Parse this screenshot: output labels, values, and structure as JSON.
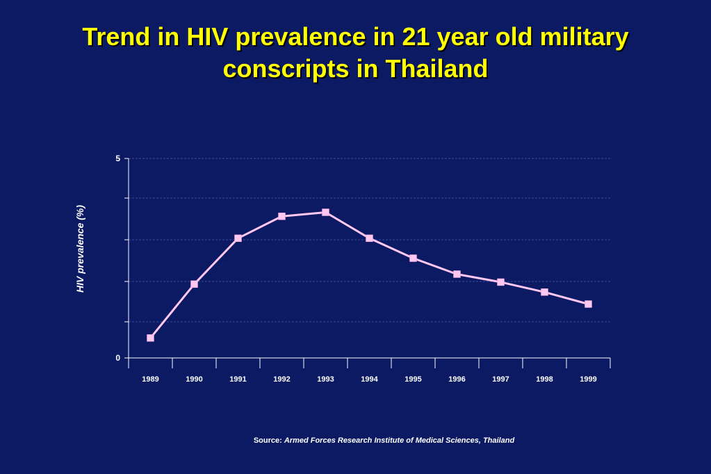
{
  "title": {
    "line1": "Trend in HIV prevalence in 21 year old military",
    "line2": "conscripts in Thailand"
  },
  "chart_data": {
    "type": "line",
    "categories": [
      "1989",
      "1990",
      "1991",
      "1992",
      "1993",
      "1994",
      "1995",
      "1996",
      "1997",
      "1998",
      "1999"
    ],
    "values": [
      0.5,
      1.85,
      3.0,
      3.55,
      3.65,
      3.0,
      2.5,
      2.1,
      1.9,
      1.65,
      1.35
    ],
    "ylabel": "HIV prevalence (%)",
    "yticks": [
      "0",
      "5"
    ],
    "ylim": [
      0,
      5
    ],
    "grid": true,
    "line_color": "#ffc8f0",
    "marker_color": "#ffc8f0"
  },
  "source": {
    "label": "Source:",
    "text": "Armed Forces Research Institute of Medical Sciences, Thailand"
  }
}
